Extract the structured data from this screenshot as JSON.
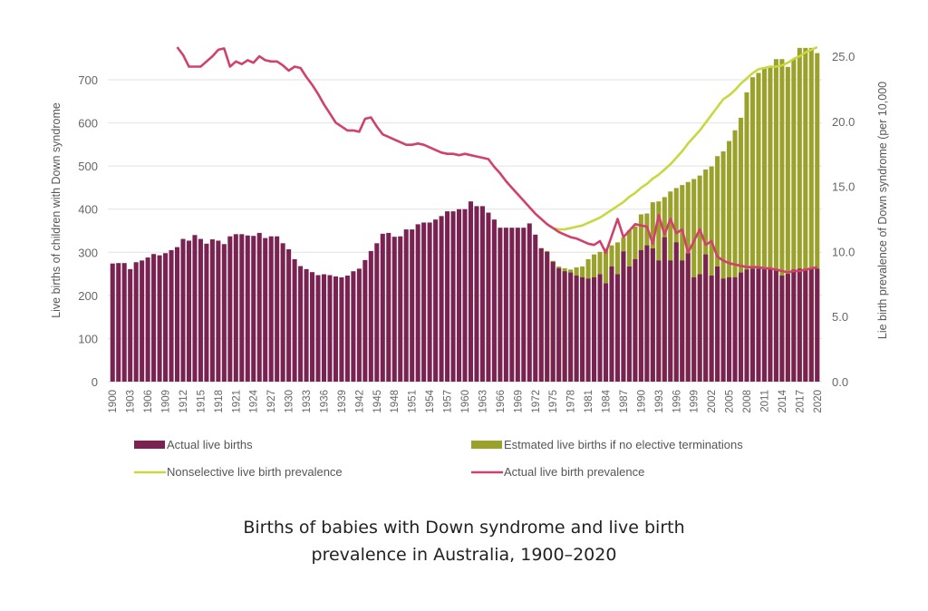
{
  "chart_data": {
    "type": "bar",
    "title_lines": [
      "Births of babies with Down syndrome and live birth",
      "prevalence in Australia, 1900–2020"
    ],
    "ylabel": "Live births of children with Down syndrome",
    "y2label": "Lie birth prevalence of Down syndrome (per 10,000",
    "ylim": [
      0,
      780
    ],
    "y2lim": [
      0,
      25.84
    ],
    "yticks": [
      0,
      100,
      200,
      300,
      400,
      500,
      600,
      700
    ],
    "y2ticks": [
      "0.0",
      "5.0",
      "10.0",
      "15.0",
      "20.0",
      "25.0"
    ],
    "xticks": [
      "1900",
      "1903",
      "1906",
      "1909",
      "1912",
      "1915",
      "1918",
      "1921",
      "1924",
      "1927",
      "1930",
      "1933",
      "1936",
      "1939",
      "1942",
      "1945",
      "1948",
      "1951",
      "1954",
      "1957",
      "1960",
      "1963",
      "1966",
      "1969",
      "1972",
      "1975",
      "1978",
      "1981",
      "1984",
      "1987",
      "1990",
      "1993",
      "1996",
      "1999",
      "2002",
      "2005",
      "2008",
      "2011",
      "2014",
      "2017",
      "2020"
    ],
    "x_first_year": 1900,
    "x_last_year": 2020,
    "grid": true,
    "legend_position": "bottom",
    "series": [
      {
        "name": "Actual live births",
        "kind": "bar",
        "axis": "left",
        "color": "#7a2352",
        "values": [
          274,
          275,
          275,
          261,
          277,
          281,
          288,
          296,
          293,
          298,
          305,
          312,
          331,
          327,
          340,
          331,
          320,
          330,
          327,
          319,
          337,
          342,
          342,
          339,
          338,
          345,
          333,
          337,
          337,
          321,
          307,
          284,
          268,
          261,
          254,
          247,
          249,
          247,
          244,
          242,
          246,
          256,
          262,
          282,
          303,
          321,
          343,
          345,
          336,
          337,
          353,
          353,
          365,
          369,
          369,
          376,
          384,
          395,
          395,
          400,
          400,
          418,
          407,
          407,
          392,
          376,
          357,
          357,
          357,
          357,
          357,
          367,
          341,
          309,
          301,
          278,
          263,
          256,
          253,
          246,
          242,
          239,
          242,
          249,
          228,
          267,
          249,
          302,
          267,
          284,
          305,
          316,
          309,
          281,
          335,
          281,
          323,
          281,
          298,
          242,
          249,
          295,
          246,
          267,
          239,
          242,
          242,
          253,
          260,
          262,
          262,
          262,
          262,
          262,
          246,
          250,
          260,
          262,
          262,
          262,
          262
        ]
      },
      {
        "name": "Estmated live births if no elective terminations",
        "kind": "bar",
        "axis": "left",
        "color": "#9ba22c",
        "values": [
          null,
          null,
          null,
          null,
          null,
          null,
          null,
          null,
          null,
          null,
          null,
          null,
          null,
          null,
          null,
          null,
          null,
          null,
          null,
          null,
          null,
          null,
          null,
          null,
          null,
          null,
          null,
          null,
          null,
          null,
          null,
          null,
          null,
          null,
          null,
          null,
          null,
          null,
          null,
          null,
          null,
          null,
          null,
          null,
          null,
          null,
          null,
          null,
          null,
          null,
          null,
          null,
          null,
          null,
          null,
          null,
          null,
          null,
          null,
          null,
          null,
          null,
          null,
          null,
          null,
          null,
          null,
          null,
          null,
          null,
          null,
          null,
          null,
          310,
          303,
          280,
          267,
          263,
          260,
          265,
          267,
          284,
          295,
          301,
          309,
          316,
          323,
          334,
          351,
          360,
          388,
          390,
          416,
          418,
          428,
          441,
          449,
          456,
          463,
          470,
          478,
          492,
          499,
          523,
          534,
          558,
          583,
          612,
          671,
          706,
          716,
          727,
          730,
          748,
          748,
          730,
          748,
          774,
          774,
          774,
          762
        ]
      },
      {
        "name": "Nonselective live birth prevalence",
        "kind": "line",
        "axis": "right",
        "color": "#c9d741",
        "values": [
          null,
          null,
          null,
          null,
          null,
          null,
          null,
          null,
          null,
          null,
          null,
          null,
          null,
          null,
          null,
          null,
          null,
          null,
          null,
          null,
          null,
          null,
          null,
          null,
          null,
          null,
          null,
          null,
          null,
          null,
          null,
          null,
          null,
          null,
          null,
          null,
          null,
          null,
          null,
          null,
          null,
          null,
          null,
          null,
          null,
          null,
          null,
          null,
          null,
          null,
          null,
          null,
          null,
          null,
          null,
          null,
          null,
          null,
          null,
          null,
          null,
          null,
          null,
          null,
          null,
          null,
          null,
          null,
          null,
          null,
          null,
          null,
          null,
          null,
          12.1,
          11.8,
          11.7,
          11.7,
          11.8,
          11.9,
          12.0,
          12.2,
          12.4,
          12.6,
          12.9,
          13.2,
          13.5,
          13.8,
          14.2,
          14.5,
          14.9,
          15.2,
          15.6,
          15.9,
          16.3,
          16.7,
          17.2,
          17.7,
          18.3,
          18.8,
          19.3,
          19.9,
          20.5,
          21.1,
          21.7,
          22.0,
          22.4,
          22.9,
          23.3,
          23.7,
          24.0,
          24.1,
          24.2,
          24.2,
          24.3,
          24.5,
          24.8,
          25.0,
          25.3,
          25.5,
          25.7
        ]
      },
      {
        "name": "Actual live birth prevalence",
        "kind": "line",
        "axis": "right",
        "color": "#d0416b",
        "values": [
          null,
          null,
          null,
          null,
          null,
          null,
          null,
          null,
          null,
          null,
          null,
          25.7,
          25.1,
          24.2,
          24.2,
          24.2,
          24.6,
          25.0,
          25.5,
          25.6,
          24.2,
          24.6,
          24.4,
          24.7,
          24.5,
          25.0,
          24.7,
          24.6,
          24.6,
          24.3,
          23.9,
          24.2,
          24.1,
          23.4,
          22.8,
          22.1,
          21.3,
          20.6,
          19.9,
          19.6,
          19.3,
          19.3,
          19.2,
          20.2,
          20.3,
          19.6,
          19.0,
          18.8,
          18.6,
          18.4,
          18.2,
          18.2,
          18.3,
          18.2,
          18.0,
          17.8,
          17.6,
          17.5,
          17.5,
          17.4,
          17.5,
          17.4,
          17.3,
          17.2,
          17.1,
          16.5,
          16.0,
          15.4,
          14.9,
          14.4,
          13.9,
          13.4,
          12.9,
          12.5,
          12.1,
          11.8,
          11.5,
          11.3,
          11.1,
          11.0,
          10.8,
          10.6,
          10.5,
          10.8,
          9.9,
          11.2,
          12.5,
          11.1,
          11.6,
          12.1,
          12.0,
          11.9,
          10.6,
          12.8,
          11.3,
          12.5,
          11.4,
          11.7,
          9.9,
          10.8,
          11.7,
          10.5,
          10.8,
          9.6,
          9.3,
          9.1,
          9.0,
          8.9,
          8.8,
          8.8,
          8.8,
          8.7,
          8.7,
          8.6,
          8.5,
          8.4,
          8.5,
          8.5,
          8.6,
          8.7,
          8.8
        ]
      }
    ]
  }
}
